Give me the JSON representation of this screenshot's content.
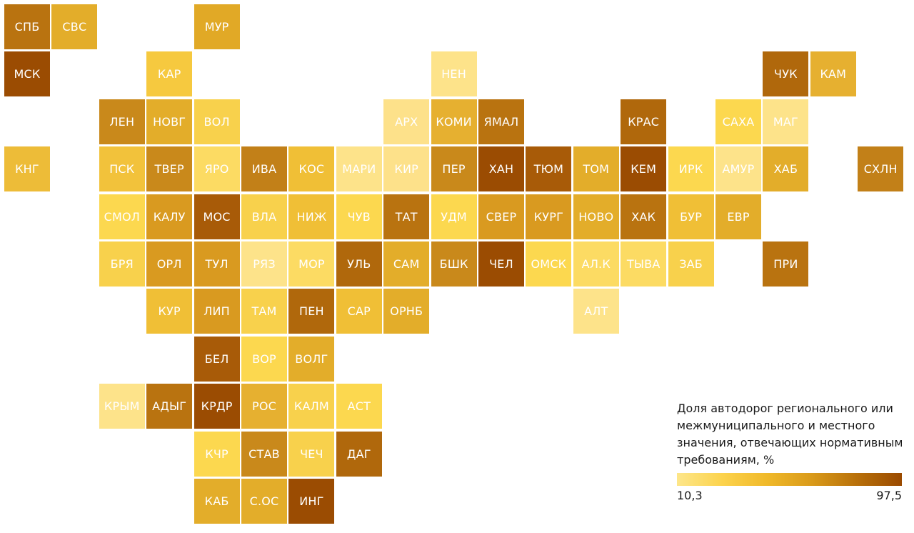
{
  "legend": {
    "title": "Доля автодорог регионального или межмуниципального и местного значения, отвечающих нормативным требованиям, %",
    "min_label": "10,3",
    "max_label": "97,5",
    "gradient_colors": [
      "#fde68a",
      "#fcd34d",
      "#f0b92a",
      "#d99a1a",
      "#b8700a",
      "#9a4a00"
    ]
  },
  "regions": [
    {
      "label": "СПБ",
      "row": 0,
      "col": 0,
      "color": "#b97310"
    },
    {
      "label": "СВС",
      "row": 0,
      "col": 1,
      "color": "#e3ad2a"
    },
    {
      "label": "МУР",
      "row": 0,
      "col": 4,
      "color": "#e1a926"
    },
    {
      "label": "МСК",
      "row": 1,
      "col": 0,
      "color": "#9b4c02"
    },
    {
      "label": "КАР",
      "row": 1,
      "col": 3,
      "color": "#f6c93f"
    },
    {
      "label": "НЕН",
      "row": 1,
      "col": 9,
      "color": "#fde38a"
    },
    {
      "label": "ЧУК",
      "row": 1,
      "col": 16,
      "color": "#b0680c"
    },
    {
      "label": "КАМ",
      "row": 1,
      "col": 17,
      "color": "#e6b030"
    },
    {
      "label": "ЛЕН",
      "row": 2,
      "col": 2,
      "color": "#c9891b"
    },
    {
      "label": "НОВГ",
      "row": 2,
      "col": 3,
      "color": "#e3ad2a"
    },
    {
      "label": "ВОЛ",
      "row": 2,
      "col": 4,
      "color": "#f8d14c"
    },
    {
      "label": "АРХ",
      "row": 2,
      "col": 8,
      "color": "#fde18a"
    },
    {
      "label": "КОМИ",
      "row": 2,
      "col": 9,
      "color": "#e6b030"
    },
    {
      "label": "ЯМАЛ",
      "row": 2,
      "col": 10,
      "color": "#b97310"
    },
    {
      "label": "КРАС",
      "row": 2,
      "col": 13,
      "color": "#b0680c"
    },
    {
      "label": "САХА",
      "row": 2,
      "col": 15,
      "color": "#fcd84f"
    },
    {
      "label": "МАГ",
      "row": 2,
      "col": 16,
      "color": "#fde38a"
    },
    {
      "label": "КНГ",
      "row": 3,
      "col": 0,
      "color": "#edbc38"
    },
    {
      "label": "ПСК",
      "row": 3,
      "col": 2,
      "color": "#f2c23b"
    },
    {
      "label": "ТВЕР",
      "row": 3,
      "col": 3,
      "color": "#c9891b"
    },
    {
      "label": "ЯРО",
      "row": 3,
      "col": 4,
      "color": "#fcdb63"
    },
    {
      "label": "ИВА",
      "row": 3,
      "col": 5,
      "color": "#c28018"
    },
    {
      "label": "КОС",
      "row": 3,
      "col": 6,
      "color": "#f0bf36"
    },
    {
      "label": "МАРИ",
      "row": 3,
      "col": 7,
      "color": "#fde38a"
    },
    {
      "label": "КИР",
      "row": 3,
      "col": 8,
      "color": "#fde18a"
    },
    {
      "label": "ПЕР",
      "row": 3,
      "col": 9,
      "color": "#c9891b"
    },
    {
      "label": "ХАН",
      "row": 3,
      "col": 10,
      "color": "#9b4c02"
    },
    {
      "label": "ТЮМ",
      "row": 3,
      "col": 11,
      "color": "#a85b08"
    },
    {
      "label": "ТОМ",
      "row": 3,
      "col": 12,
      "color": "#e3ad2a"
    },
    {
      "label": "КЕМ",
      "row": 3,
      "col": 13,
      "color": "#9b4c02"
    },
    {
      "label": "ИРК",
      "row": 3,
      "col": 14,
      "color": "#fcd84f"
    },
    {
      "label": "АМУР",
      "row": 3,
      "col": 15,
      "color": "#fde38a"
    },
    {
      "label": "ХАБ",
      "row": 3,
      "col": 16,
      "color": "#e3ad2a"
    },
    {
      "label": "СХЛН",
      "row": 3,
      "col": 18,
      "color": "#c28018"
    },
    {
      "label": "СМОЛ",
      "row": 4,
      "col": 2,
      "color": "#fcd84f"
    },
    {
      "label": "КАЛУ",
      "row": 4,
      "col": 3,
      "color": "#d99a20"
    },
    {
      "label": "МОС",
      "row": 4,
      "col": 4,
      "color": "#a85b08"
    },
    {
      "label": "ВЛА",
      "row": 4,
      "col": 5,
      "color": "#f8d14c"
    },
    {
      "label": "НИЖ",
      "row": 4,
      "col": 6,
      "color": "#f0bf36"
    },
    {
      "label": "ЧУВ",
      "row": 4,
      "col": 7,
      "color": "#fcd84f"
    },
    {
      "label": "ТАТ",
      "row": 4,
      "col": 8,
      "color": "#b97310"
    },
    {
      "label": "УДМ",
      "row": 4,
      "col": 9,
      "color": "#fcd84f"
    },
    {
      "label": "СВЕР",
      "row": 4,
      "col": 10,
      "color": "#d99a20"
    },
    {
      "label": "КУРГ",
      "row": 4,
      "col": 11,
      "color": "#d99a20"
    },
    {
      "label": "НОВО",
      "row": 4,
      "col": 12,
      "color": "#e3ad2a"
    },
    {
      "label": "ХАК",
      "row": 4,
      "col": 13,
      "color": "#b97310"
    },
    {
      "label": "БУР",
      "row": 4,
      "col": 14,
      "color": "#f0bf36"
    },
    {
      "label": "ЕВР",
      "row": 4,
      "col": 15,
      "color": "#e3ad2a"
    },
    {
      "label": "БРЯ",
      "row": 5,
      "col": 2,
      "color": "#f8d14c"
    },
    {
      "label": "ОРЛ",
      "row": 5,
      "col": 3,
      "color": "#d99a20"
    },
    {
      "label": "ТУЛ",
      "row": 5,
      "col": 4,
      "color": "#d99a20"
    },
    {
      "label": "РЯЗ",
      "row": 5,
      "col": 5,
      "color": "#fde38a"
    },
    {
      "label": "МОР",
      "row": 5,
      "col": 6,
      "color": "#fcdb63"
    },
    {
      "label": "УЛЬ",
      "row": 5,
      "col": 7,
      "color": "#b0680c"
    },
    {
      "label": "САМ",
      "row": 5,
      "col": 8,
      "color": "#e3ad2a"
    },
    {
      "label": "БШК",
      "row": 5,
      "col": 9,
      "color": "#c9891b"
    },
    {
      "label": "ЧЕЛ",
      "row": 5,
      "col": 10,
      "color": "#9b4c02"
    },
    {
      "label": "ОМСК",
      "row": 5,
      "col": 11,
      "color": "#fcd84f"
    },
    {
      "label": "АЛ.К",
      "row": 5,
      "col": 12,
      "color": "#fcdb63"
    },
    {
      "label": "ТЫВА",
      "row": 5,
      "col": 13,
      "color": "#fcdb63"
    },
    {
      "label": "ЗАБ",
      "row": 5,
      "col": 14,
      "color": "#f8d14c"
    },
    {
      "label": "ПРИ",
      "row": 5,
      "col": 16,
      "color": "#b97310"
    },
    {
      "label": "КУР",
      "row": 6,
      "col": 3,
      "color": "#f0bf36"
    },
    {
      "label": "ЛИП",
      "row": 6,
      "col": 4,
      "color": "#d99a20"
    },
    {
      "label": "ТАМ",
      "row": 6,
      "col": 5,
      "color": "#f8d14c"
    },
    {
      "label": "ПЕН",
      "row": 6,
      "col": 6,
      "color": "#b0680c"
    },
    {
      "label": "САР",
      "row": 6,
      "col": 7,
      "color": "#f0bf36"
    },
    {
      "label": "ОРНБ",
      "row": 6,
      "col": 8,
      "color": "#e3ad2a"
    },
    {
      "label": "АЛТ",
      "row": 6,
      "col": 12,
      "color": "#fde38a"
    },
    {
      "label": "БЕЛ",
      "row": 7,
      "col": 4,
      "color": "#a85b08"
    },
    {
      "label": "ВОР",
      "row": 7,
      "col": 5,
      "color": "#fcd84f"
    },
    {
      "label": "ВОЛГ",
      "row": 7,
      "col": 6,
      "color": "#e3ad2a"
    },
    {
      "label": "КРЫМ",
      "row": 8,
      "col": 2,
      "color": "#fde38a"
    },
    {
      "label": "АДЫГ",
      "row": 8,
      "col": 3,
      "color": "#b97310"
    },
    {
      "label": "КРДР",
      "row": 8,
      "col": 4,
      "color": "#9b4c02"
    },
    {
      "label": "РОС",
      "row": 8,
      "col": 5,
      "color": "#e6b030"
    },
    {
      "label": "КАЛМ",
      "row": 8,
      "col": 6,
      "color": "#f8d14c"
    },
    {
      "label": "АСТ",
      "row": 8,
      "col": 7,
      "color": "#fcd84f"
    },
    {
      "label": "КЧР",
      "row": 9,
      "col": 4,
      "color": "#fcd84f"
    },
    {
      "label": "СТАВ",
      "row": 9,
      "col": 5,
      "color": "#c9891b"
    },
    {
      "label": "ЧЕЧ",
      "row": 9,
      "col": 6,
      "color": "#f8d14c"
    },
    {
      "label": "ДАГ",
      "row": 9,
      "col": 7,
      "color": "#b0680c"
    },
    {
      "label": "КАБ",
      "row": 10,
      "col": 4,
      "color": "#e3ad2a"
    },
    {
      "label": "С.ОС",
      "row": 10,
      "col": 5,
      "color": "#e3ad2a"
    },
    {
      "label": "ИНГ",
      "row": 10,
      "col": 6,
      "color": "#9b4c02"
    }
  ]
}
